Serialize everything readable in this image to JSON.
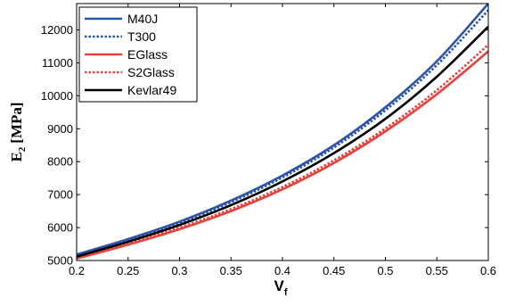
{
  "chart_data": {
    "type": "line",
    "title": "",
    "xlabel": "V",
    "xlabel_subscript": "f",
    "ylabel": "E",
    "ylabel_subscript": "2",
    "ylabel_unit": "[MPa]",
    "xlim": [
      0.2,
      0.6
    ],
    "ylim": [
      5000,
      12800
    ],
    "xticks": [
      0.2,
      0.25,
      0.3,
      0.35,
      0.4,
      0.45,
      0.5,
      0.55,
      0.6
    ],
    "xtick_labels": [
      "0.2",
      "0.25",
      "0.3",
      "0.35",
      "0.4",
      "0.45",
      "0.5",
      "0.55",
      "0.6"
    ],
    "yticks": [
      5000,
      6000,
      7000,
      8000,
      9000,
      10000,
      11000,
      12000
    ],
    "ytick_labels": [
      "5000",
      "6000",
      "7000",
      "8000",
      "9000",
      "10000",
      "11000",
      "12000"
    ],
    "grid": false,
    "legend_position": "top-left",
    "x": [
      0.2,
      0.25,
      0.3,
      0.35,
      0.4,
      0.45,
      0.5,
      0.55,
      0.6
    ],
    "series": [
      {
        "name": "M40J",
        "color": "#2a55a8",
        "dash": "solid",
        "values": [
          5180,
          5650,
          6180,
          6820,
          7580,
          8500,
          9650,
          11050,
          12800
        ]
      },
      {
        "name": "T300",
        "color": "#2a55a8",
        "dash": "dotted",
        "values": [
          5160,
          5620,
          6140,
          6770,
          7520,
          8430,
          9560,
          10930,
          12600
        ]
      },
      {
        "name": "EGlass",
        "color": "#e8403c",
        "dash": "solid",
        "values": [
          5060,
          5480,
          5950,
          6500,
          7160,
          7960,
          8920,
          10050,
          11350
        ]
      },
      {
        "name": "S2Glass",
        "color": "#e8403c",
        "dash": "dotted",
        "values": [
          5080,
          5510,
          6000,
          6560,
          7230,
          8040,
          9010,
          10170,
          11550
        ]
      },
      {
        "name": "Kevlar49",
        "color": "#000000",
        "dash": "solid",
        "values": [
          5120,
          5570,
          6080,
          6680,
          7400,
          8260,
          9300,
          10580,
          12100
        ]
      }
    ]
  }
}
